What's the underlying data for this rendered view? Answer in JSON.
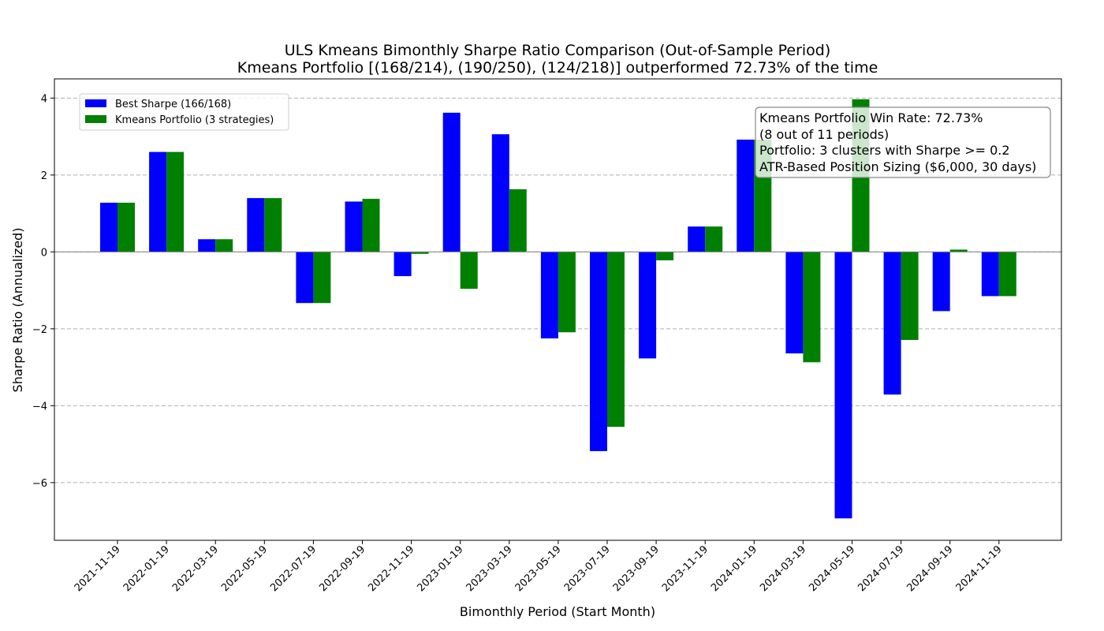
{
  "chart_data": {
    "type": "bar",
    "title": "ULS Kmeans Bimonthly Sharpe Ratio Comparison (Out-of-Sample Period)",
    "subtitle": "Kmeans Portfolio [(168/214), (190/250), (124/218)] outperformed 72.73% of the time",
    "xlabel": "Bimonthly Period (Start Month)",
    "ylabel": "Sharpe Ratio (Annualized)",
    "ylim": [
      -7.5,
      4.5
    ],
    "yticks": [
      -6,
      -4,
      -2,
      0,
      2,
      4
    ],
    "ytick_labels": [
      "−6",
      "−4",
      "−2",
      "0",
      "2",
      "4"
    ],
    "grid": "y-dashed",
    "legend_position": "upper-left",
    "categories": [
      "2021-11-19",
      "2022-01-19",
      "2022-03-19",
      "2022-05-19",
      "2022-07-19",
      "2022-09-19",
      "2022-11-19",
      "2023-01-19",
      "2023-03-19",
      "2023-05-19",
      "2023-07-19",
      "2023-09-19",
      "2023-11-19",
      "2024-01-19",
      "2024-03-19",
      "2024-05-19",
      "2024-07-19",
      "2024-09-19",
      "2024-11-19"
    ],
    "series": [
      {
        "name": "Best Sharpe (166/168)",
        "color": "#0000ff",
        "values": [
          1.28,
          2.6,
          0.33,
          1.4,
          -1.33,
          1.31,
          -0.63,
          3.62,
          3.06,
          -2.25,
          -5.18,
          -2.77,
          0.66,
          2.92,
          -2.64,
          -6.93,
          -3.71,
          -1.54,
          -1.15
        ]
      },
      {
        "name": "Kmeans Portfolio (3 strategies)",
        "color": "#008000",
        "values": [
          1.28,
          2.6,
          0.33,
          1.4,
          -1.33,
          1.38,
          -0.05,
          -0.96,
          1.63,
          -2.09,
          -4.55,
          -0.22,
          0.66,
          2.92,
          -2.87,
          3.97,
          -2.29,
          0.06,
          -1.15
        ]
      }
    ],
    "annotation": {
      "lines": [
        "Kmeans Portfolio Win Rate: 72.73%",
        "(8 out of 11 periods)",
        "Portfolio: 3 clusters with Sharpe >= 0.2",
        "ATR-Based Position Sizing ($6,000, 30 days)"
      ]
    }
  }
}
